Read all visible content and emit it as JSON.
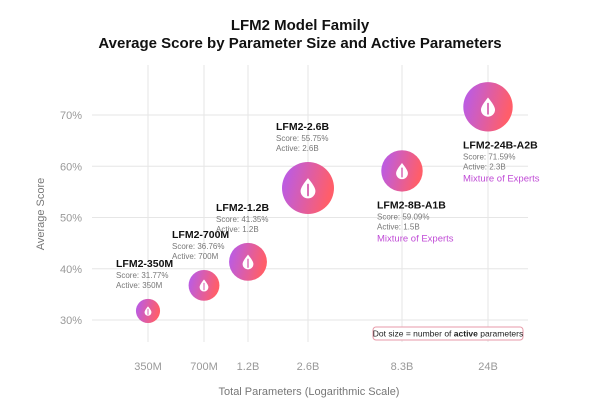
{
  "chart_data": {
    "type": "scatter",
    "title": "LFM2 Model Family",
    "subtitle": "Average Score by Parameter Size and Active Parameters",
    "xlabel": "Total Parameters (Logarithmic Scale)",
    "ylabel": "Average Score",
    "x_scale": "log",
    "x_ticks": [
      "350M",
      "700M",
      "1.2B",
      "2.6B",
      "8.3B",
      "24B"
    ],
    "x_tick_values": [
      0.35,
      0.7,
      1.2,
      2.6,
      8.3,
      24
    ],
    "y_ticks": [
      "30%",
      "40%",
      "50%",
      "60%",
      "70%"
    ],
    "y_tick_values": [
      30,
      40,
      50,
      60,
      70
    ],
    "ylim": [
      28,
      75
    ],
    "grid": true,
    "points": [
      {
        "name": "LFM2-350M",
        "params": 0.35,
        "score": 31.77,
        "active": 0.35,
        "score_text": "Score: 31.77%",
        "active_text": "Active: 350M",
        "note": ""
      },
      {
        "name": "LFM2-700M",
        "params": 0.7,
        "score": 36.76,
        "active": 0.7,
        "score_text": "Score: 36.76%",
        "active_text": "Active: 700M",
        "note": ""
      },
      {
        "name": "LFM2-1.2B",
        "params": 1.2,
        "score": 41.35,
        "active": 1.2,
        "score_text": "Score: 41.35%",
        "active_text": "Active: 1.2B",
        "note": ""
      },
      {
        "name": "LFM2-2.6B",
        "params": 2.6,
        "score": 55.75,
        "active": 2.6,
        "score_text": "Score: 55.75%",
        "active_text": "Active: 2.6B",
        "note": ""
      },
      {
        "name": "LFM2-8B-A1B",
        "params": 8.3,
        "score": 59.09,
        "active": 1.5,
        "score_text": "Score: 59.09%",
        "active_text": "Active: 1.5B",
        "note": "Mixture of Experts"
      },
      {
        "name": "LFM2-24B-A2B",
        "params": 24,
        "score": 71.59,
        "active": 2.3,
        "score_text": "Score: 71.59%",
        "active_text": "Active: 2.3B",
        "note": "Mixture of Experts"
      }
    ],
    "legend_note": {
      "prefix": "Dot size = number of ",
      "bold": "active",
      "suffix": " parameters"
    },
    "colors": {
      "bubble_start": "#b35cf2",
      "bubble_end": "#ff5e6a",
      "grid": "#e6e6e6",
      "moe_text": "#c04bd6",
      "note_border": "#e79aa8"
    }
  }
}
